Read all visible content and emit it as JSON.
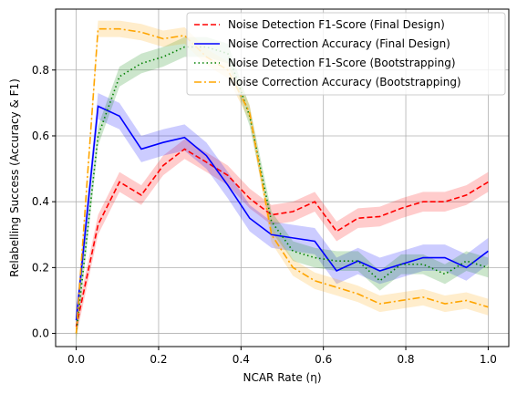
{
  "chart_data": {
    "type": "line",
    "xlabel": "NCAR Rate (η)",
    "ylabel": "Relabelling Success (Accuracy & F1)",
    "xlim": [
      -0.05,
      1.05
    ],
    "ylim": [
      -0.04,
      0.985
    ],
    "xticks": [
      0.0,
      0.2,
      0.4,
      0.6,
      0.8,
      1.0
    ],
    "yticks": [
      0.0,
      0.2,
      0.4,
      0.6,
      0.8
    ],
    "grid": true,
    "legend_position": "top-right",
    "x": [
      0.0,
      0.053,
      0.105,
      0.158,
      0.211,
      0.263,
      0.316,
      0.368,
      0.421,
      0.474,
      0.526,
      0.579,
      0.632,
      0.684,
      0.737,
      0.789,
      0.842,
      0.895,
      0.947,
      1.0
    ],
    "series": [
      {
        "name": "Noise Detection F1-Score (Final Design)",
        "color": "#ff0000",
        "dash": "dashed",
        "values": [
          0.02,
          0.33,
          0.46,
          0.42,
          0.51,
          0.56,
          0.52,
          0.48,
          0.41,
          0.36,
          0.37,
          0.4,
          0.31,
          0.35,
          0.355,
          0.38,
          0.4,
          0.4,
          0.42,
          0.46
        ],
        "band": 0.03
      },
      {
        "name": "Noise Correction Accuracy (Final Design)",
        "color": "#0000ff",
        "dash": "solid",
        "values": [
          0.04,
          0.69,
          0.66,
          0.56,
          0.58,
          0.595,
          0.54,
          0.45,
          0.35,
          0.3,
          0.29,
          0.28,
          0.19,
          0.22,
          0.19,
          0.21,
          0.23,
          0.23,
          0.2,
          0.25
        ],
        "band": 0.04
      },
      {
        "name": "Noise Detection F1-Score (Bootstrapping)",
        "color": "#008000",
        "dash": "dotted",
        "values": [
          0.0,
          0.6,
          0.78,
          0.82,
          0.84,
          0.87,
          0.87,
          0.85,
          0.66,
          0.34,
          0.25,
          0.23,
          0.22,
          0.22,
          0.16,
          0.21,
          0.21,
          0.18,
          0.22,
          0.2
        ],
        "band": 0.03
      },
      {
        "name": "Noise Correction Accuracy (Bootstrapping)",
        "color": "#ffa500",
        "dash": "dashdot",
        "values": [
          0.0,
          0.925,
          0.925,
          0.915,
          0.895,
          0.905,
          0.84,
          0.8,
          0.67,
          0.3,
          0.2,
          0.16,
          0.14,
          0.12,
          0.09,
          0.1,
          0.11,
          0.09,
          0.1,
          0.08
        ],
        "band": 0.025
      }
    ]
  }
}
